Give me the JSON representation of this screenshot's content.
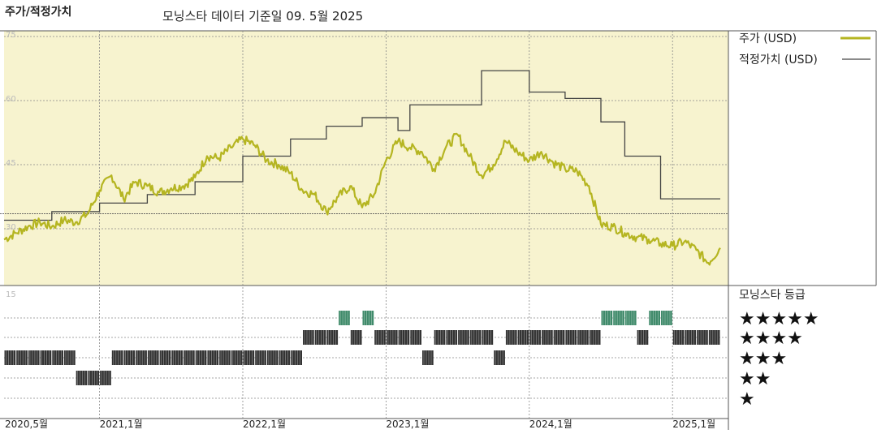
{
  "header": {
    "title": "주가/적정가치",
    "subtitle": "모닝스타 데이터 기준일 09. 5월 2025"
  },
  "legend": {
    "price_label": "주가 (USD)",
    "fair_label": "적정가치 (USD)",
    "rating_label": "모닝스타 등급"
  },
  "colors": {
    "price_line": "#b5b521",
    "fair_line": "#444444",
    "plot_bg": "#f7f3cf",
    "five_star": "#3f8a6a",
    "rating_bar": "#333333"
  },
  "chart_data": [
    {
      "type": "line",
      "title": "",
      "ylim": [
        15,
        75
      ],
      "yticks": [
        "75",
        "60",
        "45",
        "30",
        "15"
      ],
      "x_ticks": [
        "2020,5월",
        "2021,1월",
        "2022,1월",
        "2023,1월",
        "2024,1월",
        "2025,1월"
      ],
      "x_tick_dates": [
        "2020-05",
        "2021-01",
        "2022-01",
        "2023-01",
        "2024-01",
        "2025-01"
      ],
      "x_range": [
        "2020-05",
        "2025-05"
      ],
      "grid": true,
      "legend_position": "right",
      "series": [
        {
          "name": "주가 (USD)",
          "points": [
            [
              "2020-05",
              27.5
            ],
            [
              "2020-06",
              29.0
            ],
            [
              "2020-07",
              30.5
            ],
            [
              "2020-08",
              31.5
            ],
            [
              "2020-09",
              30.5
            ],
            [
              "2020-10",
              32.0
            ],
            [
              "2020-11",
              31.5
            ],
            [
              "2020-12",
              33.5
            ],
            [
              "2021-01",
              39.0
            ],
            [
              "2021-02",
              42.5
            ],
            [
              "2021-03",
              37.0
            ],
            [
              "2021-04",
              41.0
            ],
            [
              "2021-05",
              40.0
            ],
            [
              "2021-06",
              38.5
            ],
            [
              "2021-07",
              39.5
            ],
            [
              "2021-08",
              40.0
            ],
            [
              "2021-09",
              42.0
            ],
            [
              "2021-10",
              47.0
            ],
            [
              "2021-11",
              46.5
            ],
            [
              "2021-12",
              49.0
            ],
            [
              "2022-01",
              51.0
            ],
            [
              "2022-02",
              49.5
            ],
            [
              "2022-03",
              46.0
            ],
            [
              "2022-04",
              45.0
            ],
            [
              "2022-05",
              43.0
            ],
            [
              "2022-06",
              39.0
            ],
            [
              "2022-07",
              38.0
            ],
            [
              "2022-08",
              34.0
            ],
            [
              "2022-09",
              37.5
            ],
            [
              "2022-10",
              40.0
            ],
            [
              "2022-11",
              35.0
            ],
            [
              "2022-12",
              38.0
            ],
            [
              "2023-01",
              46.0
            ],
            [
              "2023-02",
              50.5
            ],
            [
              "2023-03",
              49.0
            ],
            [
              "2023-04",
              48.0
            ],
            [
              "2023-05",
              44.0
            ],
            [
              "2023-06",
              49.0
            ],
            [
              "2023-07",
              52.0
            ],
            [
              "2023-08",
              47.0
            ],
            [
              "2023-09",
              42.5
            ],
            [
              "2023-10",
              45.0
            ],
            [
              "2023-11",
              50.5
            ],
            [
              "2023-12",
              48.0
            ],
            [
              "2024-01",
              46.0
            ],
            [
              "2024-02",
              48.0
            ],
            [
              "2024-03",
              45.5
            ],
            [
              "2024-04",
              44.0
            ],
            [
              "2024-05",
              43.5
            ],
            [
              "2024-06",
              40.0
            ],
            [
              "2024-07",
              31.0
            ],
            [
              "2024-08",
              30.5
            ],
            [
              "2024-09",
              29.0
            ],
            [
              "2024-10",
              28.0
            ],
            [
              "2024-11",
              27.5
            ],
            [
              "2024-12",
              26.5
            ],
            [
              "2025-01",
              26.0
            ],
            [
              "2025-02",
              27.0
            ],
            [
              "2025-03",
              25.0
            ],
            [
              "2025-04",
              22.0
            ],
            [
              "2025-05",
              25.5
            ]
          ]
        },
        {
          "name": "적정가치 (USD)",
          "steps": [
            [
              "2020-05",
              32.0
            ],
            [
              "2020-09",
              34.0
            ],
            [
              "2021-01",
              36.0
            ],
            [
              "2021-05",
              38.0
            ],
            [
              "2021-09",
              41.0
            ],
            [
              "2022-01",
              47.0
            ],
            [
              "2022-05",
              51.0
            ],
            [
              "2022-08",
              54.0
            ],
            [
              "2022-11",
              56.0
            ],
            [
              "2023-02",
              53.0
            ],
            [
              "2023-03",
              59.0
            ],
            [
              "2023-09",
              67.0
            ],
            [
              "2024-01",
              62.0
            ],
            [
              "2024-04",
              60.5
            ],
            [
              "2024-07",
              55.0
            ],
            [
              "2024-09",
              47.0
            ],
            [
              "2024-12",
              37.0
            ],
            [
              "2025-05",
              37.0
            ]
          ]
        }
      ]
    },
    {
      "type": "heatmap",
      "title": "모닝스타 등급",
      "rows": [
        "★★★★★",
        "★★★★",
        "★★★",
        "★★",
        "★"
      ],
      "ratings_by_month": [
        [
          "2020-05",
          3
        ],
        [
          "2020-06",
          3
        ],
        [
          "2020-07",
          3
        ],
        [
          "2020-08",
          3
        ],
        [
          "2020-09",
          3
        ],
        [
          "2020-10",
          3
        ],
        [
          "2020-11",
          2
        ],
        [
          "2020-12",
          2
        ],
        [
          "2021-01",
          2
        ],
        [
          "2021-02",
          3
        ],
        [
          "2021-03",
          3
        ],
        [
          "2021-04",
          3
        ],
        [
          "2021-05",
          3
        ],
        [
          "2021-06",
          3
        ],
        [
          "2021-07",
          3
        ],
        [
          "2021-08",
          3
        ],
        [
          "2021-09",
          3
        ],
        [
          "2021-10",
          3
        ],
        [
          "2021-11",
          3
        ],
        [
          "2021-12",
          3
        ],
        [
          "2022-01",
          3
        ],
        [
          "2022-02",
          3
        ],
        [
          "2022-03",
          3
        ],
        [
          "2022-04",
          3
        ],
        [
          "2022-05",
          3
        ],
        [
          "2022-06",
          4
        ],
        [
          "2022-07",
          4
        ],
        [
          "2022-08",
          4
        ],
        [
          "2022-09",
          5
        ],
        [
          "2022-10",
          4
        ],
        [
          "2022-11",
          5
        ],
        [
          "2022-12",
          4
        ],
        [
          "2023-01",
          4
        ],
        [
          "2023-02",
          4
        ],
        [
          "2023-03",
          4
        ],
        [
          "2023-04",
          3
        ],
        [
          "2023-05",
          4
        ],
        [
          "2023-06",
          4
        ],
        [
          "2023-07",
          4
        ],
        [
          "2023-08",
          4
        ],
        [
          "2023-09",
          4
        ],
        [
          "2023-10",
          3
        ],
        [
          "2023-11",
          4
        ],
        [
          "2023-12",
          4
        ],
        [
          "2024-01",
          4
        ],
        [
          "2024-02",
          4
        ],
        [
          "2024-03",
          4
        ],
        [
          "2024-04",
          4
        ],
        [
          "2024-05",
          4
        ],
        [
          "2024-06",
          4
        ],
        [
          "2024-07",
          5
        ],
        [
          "2024-08",
          5
        ],
        [
          "2024-09",
          5
        ],
        [
          "2024-10",
          4
        ],
        [
          "2024-11",
          5
        ],
        [
          "2024-12",
          5
        ],
        [
          "2025-01",
          4
        ],
        [
          "2025-02",
          4
        ],
        [
          "2025-03",
          4
        ],
        [
          "2025-04",
          4
        ]
      ]
    }
  ]
}
